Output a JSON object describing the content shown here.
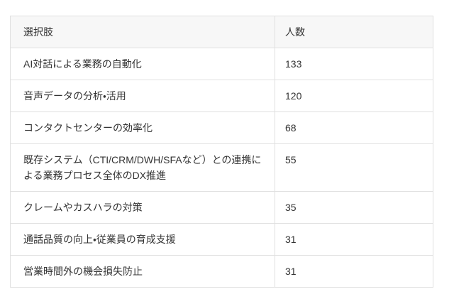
{
  "colors": {
    "page_background": "#ffffff",
    "header_row_background": "#f7f7f7",
    "border": "#e0e0e0",
    "text": "#333333"
  },
  "table": {
    "headers": [
      "選択肢",
      "人数"
    ],
    "rows": [
      {
        "label": "AI対話による業務の自動化",
        "value": "133"
      },
      {
        "label": "音声データの分析・活用",
        "value": "120"
      },
      {
        "label": "コンタクトセンターの効率化",
        "value": "68"
      },
      {
        "label": "既存システム（CTI/CRM/DWH/SFAなど）との連携による業務プロセス全体のDX推進",
        "value": "55"
      },
      {
        "label": "クレームやカスハラの対策",
        "value": "35"
      },
      {
        "label": "通話品質の向上・従業員の育成支援",
        "value": "31"
      },
      {
        "label": "営業時間外の機会損失防止",
        "value": "31"
      }
    ]
  },
  "chart_data": {
    "type": "table",
    "title": "",
    "columns": [
      "選択肢",
      "人数"
    ],
    "categories": [
      "AI対話による業務の自動化",
      "音声データの分析・活用",
      "コンタクトセンターの効率化",
      "既存システム（CTI/CRM/DWH/SFAなど）との連携による業務プロセス全体のDX推進",
      "クレームやカスハラの対策",
      "通話品質の向上・従業員の育成支援",
      "営業時間外の機会損失防止"
    ],
    "values": [
      133,
      120,
      68,
      55,
      35,
      31,
      31
    ]
  }
}
